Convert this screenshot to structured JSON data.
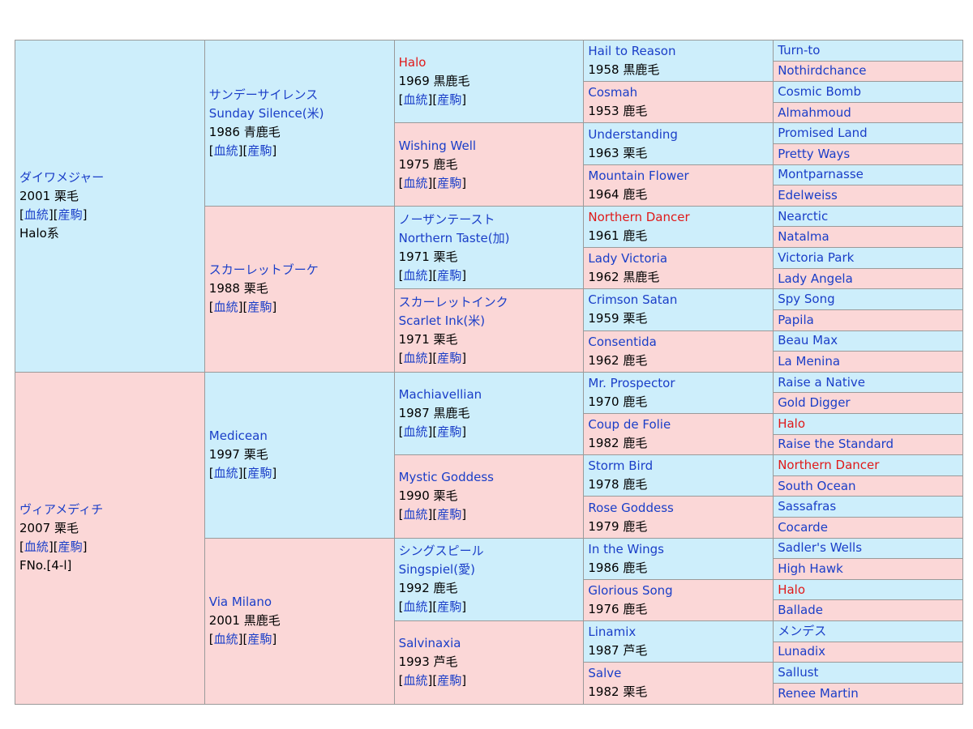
{
  "colors": {
    "male_bg": "#cdeefb",
    "female_bg": "#fbd7d7",
    "link": "#1a3ec8",
    "highlight": "#e01a1a",
    "border": "#9a9a9a"
  },
  "links": {
    "pedigree": "血統",
    "progeny": "産駒"
  },
  "horse": {
    "name": "ダイワメジャー",
    "info": "2001 栗毛",
    "lineage": "Halo系"
  },
  "sire": {
    "name": "サンデーサイレンス",
    "name_en": "Sunday Silence(米)",
    "info": "1986 青鹿毛"
  },
  "sire_dam": {
    "name": "スカーレットブーケ",
    "info": "1988 栗毛"
  },
  "dam": {
    "name": "ヴィアメディチ",
    "info": "2007 栗毛",
    "family": "FNo.[4-l]"
  },
  "dam_sire": {
    "name": "Medicean",
    "info": "1997 栗毛"
  },
  "dam_dam": {
    "name": "Via Milano",
    "info": "2001 黒鹿毛"
  },
  "gen3": [
    {
      "name": "Halo",
      "info": "1969 黒鹿毛",
      "highlight": true
    },
    {
      "name": "Wishing Well",
      "info": "1975 鹿毛"
    },
    {
      "name": "ノーザンテースト",
      "name_en": "Northern Taste(加)",
      "info": "1971 栗毛"
    },
    {
      "name": "スカーレットインク",
      "name_en": "Scarlet Ink(米)",
      "info": "1971 栗毛"
    },
    {
      "name": "Machiavellian",
      "info": "1987 黒鹿毛"
    },
    {
      "name": "Mystic Goddess",
      "info": "1990 栗毛"
    },
    {
      "name": "シングスピール",
      "name_en": "Singspiel(愛)",
      "info": "1992 鹿毛"
    },
    {
      "name": "Salvinaxia",
      "info": "1993 芦毛"
    }
  ],
  "gen4": [
    {
      "name": "Hail to Reason",
      "info": "1958 黒鹿毛"
    },
    {
      "name": "Cosmah",
      "info": "1953 鹿毛"
    },
    {
      "name": "Understanding",
      "info": "1963 栗毛"
    },
    {
      "name": "Mountain Flower",
      "info": "1964 鹿毛"
    },
    {
      "name": "Northern Dancer",
      "info": "1961 鹿毛",
      "highlight": true
    },
    {
      "name": "Lady Victoria",
      "info": "1962 黒鹿毛"
    },
    {
      "name": "Crimson Satan",
      "info": "1959 栗毛"
    },
    {
      "name": "Consentida",
      "info": "1962 鹿毛"
    },
    {
      "name": "Mr. Prospector",
      "info": "1970 鹿毛"
    },
    {
      "name": "Coup de Folie",
      "info": "1982 鹿毛"
    },
    {
      "name": "Storm Bird",
      "info": "1978 鹿毛"
    },
    {
      "name": "Rose Goddess",
      "info": "1979 鹿毛"
    },
    {
      "name": "In the Wings",
      "info": "1986 鹿毛"
    },
    {
      "name": "Glorious Song",
      "info": "1976 鹿毛"
    },
    {
      "name": "Linamix",
      "info": "1987 芦毛"
    },
    {
      "name": "Salve",
      "info": "1982 栗毛"
    }
  ],
  "gen5": [
    {
      "name": "Turn-to"
    },
    {
      "name": "Nothirdchance"
    },
    {
      "name": "Cosmic Bomb"
    },
    {
      "name": "Almahmoud"
    },
    {
      "name": "Promised Land"
    },
    {
      "name": "Pretty Ways"
    },
    {
      "name": "Montparnasse"
    },
    {
      "name": "Edelweiss"
    },
    {
      "name": "Nearctic"
    },
    {
      "name": "Natalma"
    },
    {
      "name": "Victoria Park"
    },
    {
      "name": "Lady Angela"
    },
    {
      "name": "Spy Song"
    },
    {
      "name": "Papila"
    },
    {
      "name": "Beau Max"
    },
    {
      "name": "La Menina"
    },
    {
      "name": "Raise a Native"
    },
    {
      "name": "Gold Digger"
    },
    {
      "name": "Halo",
      "highlight": true
    },
    {
      "name": "Raise the Standard"
    },
    {
      "name": "Northern Dancer",
      "highlight": true
    },
    {
      "name": "South Ocean"
    },
    {
      "name": "Sassafras"
    },
    {
      "name": "Cocarde"
    },
    {
      "name": "Sadler's Wells"
    },
    {
      "name": "High Hawk"
    },
    {
      "name": "Halo",
      "highlight": true
    },
    {
      "name": "Ballade"
    },
    {
      "name": "メンデス"
    },
    {
      "name": "Lunadix"
    },
    {
      "name": "Sallust"
    },
    {
      "name": "Renee Martin"
    }
  ]
}
